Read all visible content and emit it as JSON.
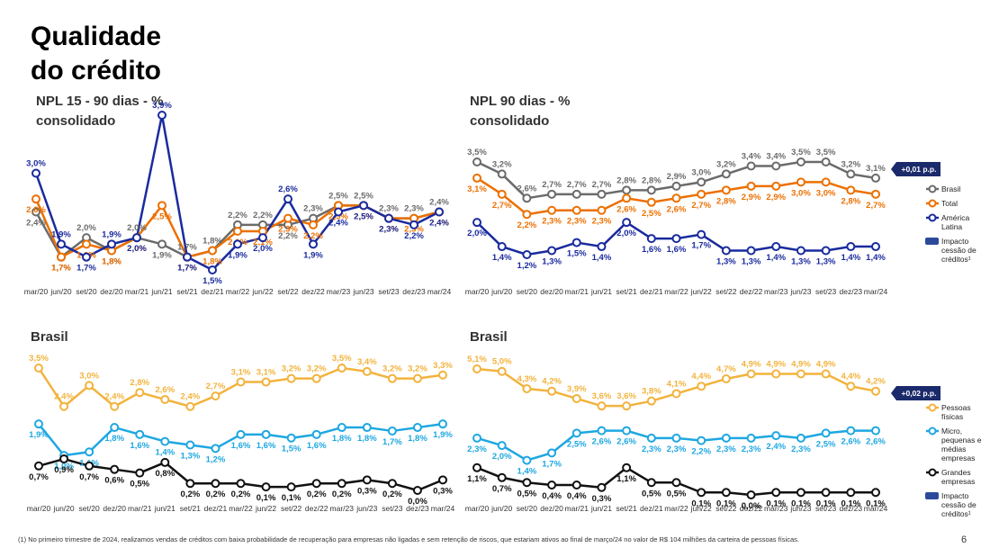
{
  "title": [
    "Qualidade",
    "do crédito"
  ],
  "footnote": "(1) No primeiro trimestre de 2024, realizamos vendas de créditos com baixa probabilidade de recuperação para empresas não ligadas e sem retenção de riscos, que estariam ativos ao final de março/24 no valor de R$ 104 milhões da carteira de pessoas físicas.",
  "page_number": "6",
  "chart_data": [
    {
      "type": "line",
      "title": "NPL 15 - 90 dias - %",
      "subtitle": "consolidado",
      "categories": [
        "mar/20",
        "jun/20",
        "set/20",
        "dez/20",
        "mar/21",
        "jun/21",
        "set/21",
        "dez/21",
        "mar/22",
        "jun/22",
        "set/22",
        "dez/22",
        "mar/23",
        "jun/23",
        "set/23",
        "dez/23",
        "mar/24"
      ],
      "series": [
        {
          "name": "Brasil",
          "color": "#6b6b6b",
          "values": [
            2.4,
            1.7,
            2.0,
            1.8,
            2.0,
            1.9,
            1.7,
            1.8,
            2.2,
            2.2,
            2.2,
            2.3,
            2.5,
            2.5,
            2.3,
            2.3,
            2.4
          ],
          "value_labels": [
            "2,4%",
            "1,7%",
            "2,0%",
            "1,8%",
            "2,0%",
            "1,9%",
            "1,7%",
            "1,8%",
            "2,2%",
            "2,2%",
            "2,2%",
            "2,3%",
            "2,5%",
            "2,5%",
            "2,3%",
            "2,3%",
            "2,4%"
          ]
        },
        {
          "name": "Total",
          "color": "#ec7000",
          "values": [
            2.6,
            1.7,
            1.9,
            1.8,
            2.0,
            2.5,
            1.7,
            1.8,
            2.1,
            2.1,
            2.3,
            2.2,
            2.5,
            2.5,
            2.3,
            2.3,
            2.4
          ],
          "value_labels": [
            "2,6%",
            "1,7%",
            "1,9%",
            "1,8%",
            "2,0%",
            "2,5%",
            "1,7%",
            "1,8%",
            "2,1%",
            "2,1%",
            "2,3%",
            "2,2%",
            "2,5%",
            "2,5%",
            "2,3%",
            "2,3%",
            "2,4%"
          ]
        },
        {
          "name": "América Latina",
          "color": "#1a2b9e",
          "values": [
            3.0,
            1.9,
            1.7,
            1.9,
            2.0,
            3.9,
            1.7,
            1.5,
            1.9,
            2.0,
            2.6,
            1.9,
            2.4,
            2.5,
            2.3,
            2.2,
            2.4
          ],
          "value_labels": [
            "3,0%",
            "1,9%",
            "1,7%",
            "1,9%",
            "2,0%",
            "3,9%",
            "1,7%",
            "1,5%",
            "1,9%",
            "2,0%",
            "2,6%",
            "1,9%",
            "2,4%",
            "2,5%",
            "2,3%",
            "2,2%",
            "2,4%"
          ]
        }
      ]
    },
    {
      "type": "line",
      "title": "NPL 90 dias - %",
      "subtitle": "consolidado",
      "annotation": "+0,01 p.p.",
      "impact_label": "Impacto cessão de créditos¹",
      "impact_color": "#2b4a9a",
      "categories": [
        "mar/20",
        "jun/20",
        "set/20",
        "dez/20",
        "mar/21",
        "jun/21",
        "set/21",
        "dez/21",
        "mar/22",
        "jun/22",
        "set/22",
        "dez/22",
        "mar/23",
        "jun/23",
        "set/23",
        "dez/23",
        "mar/24"
      ],
      "series": [
        {
          "name": "Brasil",
          "color": "#6b6b6b",
          "values": [
            3.5,
            3.2,
            2.6,
            2.7,
            2.7,
            2.7,
            2.8,
            2.8,
            2.9,
            3.0,
            3.2,
            3.4,
            3.4,
            3.5,
            3.5,
            3.2,
            3.1
          ],
          "value_labels": [
            "3,5%",
            "3,2%",
            "2,6%",
            "2,7%",
            "2,7%",
            "2,7%",
            "2,8%",
            "2,8%",
            "2,9%",
            "3,0%",
            "3,2%",
            "3,4%",
            "3,4%",
            "3,5%",
            "3,5%",
            "3,2%",
            "3,1%"
          ]
        },
        {
          "name": "Total",
          "color": "#ec7000",
          "values": [
            3.1,
            2.7,
            2.2,
            2.3,
            2.3,
            2.3,
            2.6,
            2.5,
            2.6,
            2.7,
            2.8,
            2.9,
            2.9,
            3.0,
            3.0,
            2.8,
            2.7
          ],
          "value_labels": [
            "3,1%",
            "2,7%",
            "2,2%",
            "2,3%",
            "2,3%",
            "2,3%",
            "2,6%",
            "2,5%",
            "2,6%",
            "2,7%",
            "2,8%",
            "2,9%",
            "2,9%",
            "3,0%",
            "3,0%",
            "2,8%",
            "2,7%"
          ]
        },
        {
          "name": "América Latina",
          "color": "#1a2b9e",
          "values": [
            2.0,
            1.4,
            1.2,
            1.3,
            1.5,
            1.4,
            2.0,
            1.6,
            1.6,
            1.7,
            1.3,
            1.3,
            1.4,
            1.3,
            1.3,
            1.4,
            1.4
          ],
          "value_labels": [
            "2,0%",
            "1,4%",
            "1,2%",
            "1,3%",
            "1,5%",
            "1,4%",
            "2,0%",
            "1,6%",
            "1,6%",
            "1,7%",
            "1,3%",
            "1,3%",
            "1,4%",
            "1,3%",
            "1,3%",
            "1,4%",
            "1,4%"
          ]
        }
      ]
    },
    {
      "type": "line",
      "title": "Brasil",
      "categories": [
        "mar/20",
        "jun/20",
        "set/20",
        "dez/20",
        "mar/21",
        "jun/21",
        "set/21",
        "dez/21",
        "mar/22",
        "jun/22",
        "set/22",
        "dez/22",
        "mar/23",
        "jun/23",
        "set/23",
        "dez/23",
        "mar/24"
      ],
      "series": [
        {
          "name": "Pessoas físicas",
          "color": "#f2b33d",
          "values": [
            3.5,
            2.4,
            3.0,
            2.4,
            2.8,
            2.6,
            2.4,
            2.7,
            3.1,
            3.1,
            3.2,
            3.2,
            3.5,
            3.4,
            3.2,
            3.2,
            3.3
          ],
          "value_labels": [
            "3,5%",
            "2,4%",
            "3,0%",
            "2,4%",
            "2,8%",
            "2,6%",
            "2,4%",
            "2,7%",
            "3,1%",
            "3,1%",
            "3,2%",
            "3,2%",
            "3,5%",
            "3,4%",
            "3,2%",
            "3,2%",
            "3,3%"
          ]
        },
        {
          "name": "Micro, pequenas e médias empresas",
          "color": "#1ea7e1",
          "values": [
            1.9,
            1.0,
            1.1,
            1.8,
            1.6,
            1.4,
            1.3,
            1.2,
            1.6,
            1.6,
            1.5,
            1.6,
            1.8,
            1.8,
            1.7,
            1.8,
            1.9
          ],
          "value_labels": [
            "1,9%",
            "1,0%",
            "1,1%",
            "1,8%",
            "1,6%",
            "1,4%",
            "1,3%",
            "1,2%",
            "1,6%",
            "1,6%",
            "1,5%",
            "1,6%",
            "1,8%",
            "1,8%",
            "1,7%",
            "1,8%",
            "1,9%"
          ]
        },
        {
          "name": "Grandes empresas",
          "color": "#111111",
          "values": [
            0.7,
            0.9,
            0.7,
            0.6,
            0.5,
            0.8,
            0.2,
            0.2,
            0.2,
            0.1,
            0.1,
            0.2,
            0.2,
            0.3,
            0.2,
            0.0,
            0.3
          ],
          "value_labels": [
            "0,7%",
            "0,9%",
            "0,7%",
            "0,6%",
            "0,5%",
            "0,8%",
            "0,2%",
            "0,2%",
            "0,2%",
            "0,1%",
            "0,1%",
            "0,2%",
            "0,2%",
            "0,3%",
            "0,2%",
            "0,0%",
            "0,3%"
          ]
        }
      ]
    },
    {
      "type": "line",
      "title": "Brasil",
      "annotation": "+0,02 p.p.",
      "impact_label": "Impacto cessão de créditos¹",
      "impact_color": "#2b4a9a",
      "categories": [
        "mar/20",
        "jun/20",
        "set/20",
        "dez/20",
        "mar/21",
        "jun/21",
        "set/21",
        "dez/21",
        "mar/22",
        "jun/22",
        "set/22",
        "dez/22",
        "mar/23",
        "jun/23",
        "set/23",
        "dez/23",
        "mar/24"
      ],
      "series": [
        {
          "name": "Pessoas físicas",
          "color": "#f2b33d",
          "values": [
            5.1,
            5.0,
            4.3,
            4.2,
            3.9,
            3.6,
            3.6,
            3.8,
            4.1,
            4.4,
            4.7,
            4.9,
            4.9,
            4.9,
            4.9,
            4.4,
            4.2
          ],
          "value_labels": [
            "5,1%",
            "5,0%",
            "4,3%",
            "4,2%",
            "3,9%",
            "3,6%",
            "3,6%",
            "3,8%",
            "4,1%",
            "4,4%",
            "4,7%",
            "4,9%",
            "4,9%",
            "4,9%",
            "4,9%",
            "4,4%",
            "4,2%"
          ]
        },
        {
          "name": "Micro, pequenas e médias empresas",
          "color": "#1ea7e1",
          "values": [
            2.3,
            2.0,
            1.4,
            1.7,
            2.5,
            2.6,
            2.6,
            2.3,
            2.3,
            2.2,
            2.3,
            2.3,
            2.4,
            2.3,
            2.5,
            2.6,
            2.6
          ],
          "value_labels": [
            "2,3%",
            "2,0%",
            "1,4%",
            "1,7%",
            "2,5%",
            "2,6%",
            "2,6%",
            "2,3%",
            "2,3%",
            "2,2%",
            "2,3%",
            "2,3%",
            "2,4%",
            "2,3%",
            "2,5%",
            "2,6%",
            "2,6%"
          ]
        },
        {
          "name": "Grandes empresas",
          "color": "#111111",
          "values": [
            1.1,
            0.7,
            0.5,
            0.4,
            0.4,
            0.3,
            1.1,
            0.5,
            0.5,
            0.1,
            0.1,
            0.0,
            0.1,
            0.1,
            0.1,
            0.1,
            0.1
          ],
          "value_labels": [
            "1,1%",
            "0,7%",
            "0,5%",
            "0,4%",
            "0,4%",
            "0,3%",
            "1,1%",
            "0,5%",
            "0,5%",
            "0,1%",
            "0,1%",
            "0,0%",
            "0,1%",
            "0,1%",
            "0,1%",
            "0,1%",
            "0,1%"
          ]
        }
      ]
    }
  ]
}
